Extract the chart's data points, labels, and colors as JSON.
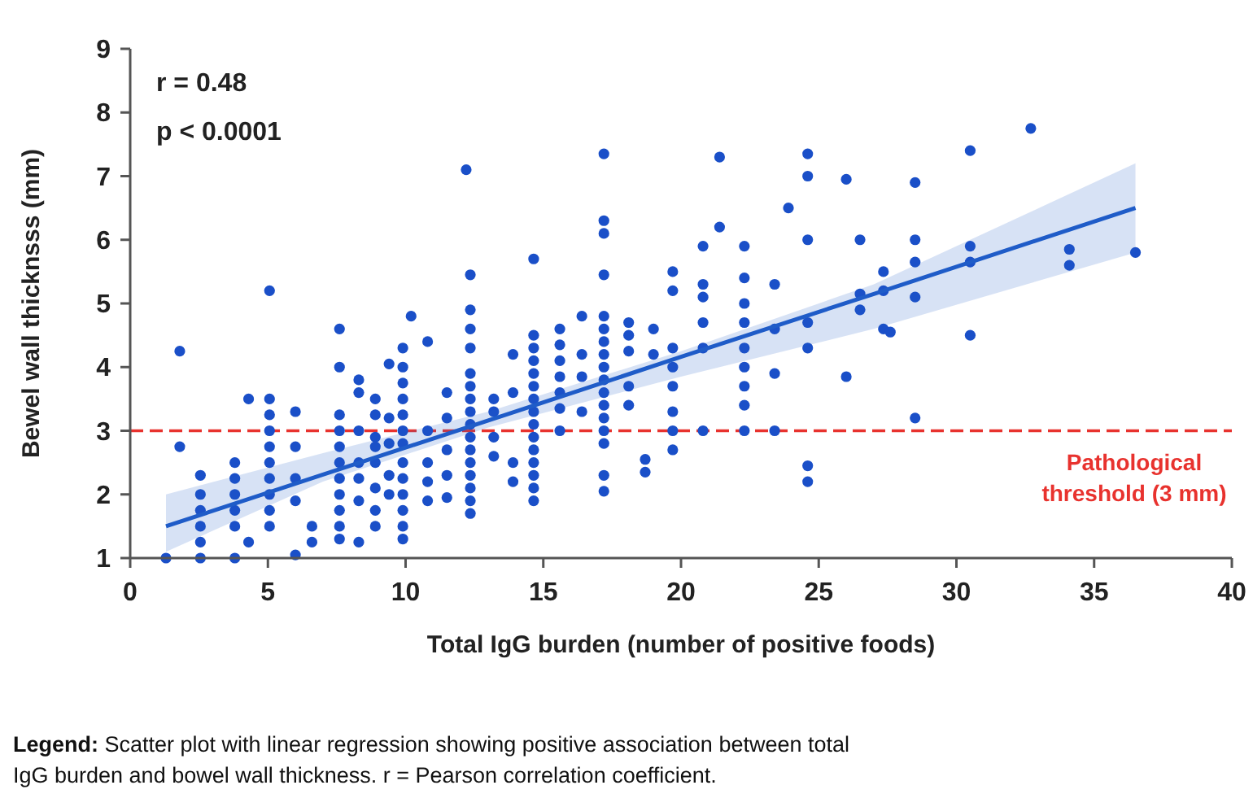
{
  "chart_data": {
    "type": "scatter",
    "xlabel": "Total IgG burden (number of positive foods)",
    "ylabel": "Bewel wall thicknsss (mm)",
    "xlim": [
      0,
      40
    ],
    "xticks": [
      0,
      5,
      10,
      15,
      20,
      25,
      30,
      35,
      40
    ],
    "ylim": [
      1,
      9
    ],
    "yticks": [
      1,
      2,
      3,
      4,
      5,
      6,
      7,
      8,
      9
    ],
    "grid": false,
    "annotations": [
      "r = 0.48",
      "p < 0.0001",
      "Legend: Scatter plot with linear regression showing positive association between total IgG burden and bowel wall thickness. r = Pearson correlation coefficient."
    ],
    "ref_lines": [
      {
        "axis": "y",
        "value": 3,
        "label": "Pathological threshold (3 mm)",
        "color": "#e8322e",
        "line_style": "dashed"
      }
    ],
    "series": [
      {
        "color": "#1a4fc8",
        "marker": "circle",
        "x": [
          1.3,
          1.8,
          1.8,
          2.55,
          2.55,
          2.55,
          2.55,
          2.55,
          2.55,
          3.8,
          3.8,
          3.8,
          3.8,
          3.8,
          3.8,
          4.3,
          4.3,
          5.06,
          5.06,
          5.06,
          5.06,
          5.06,
          5.06,
          5.06,
          5.06,
          5.06,
          5.06,
          6,
          6,
          6,
          6,
          6,
          6.6,
          6.6,
          7.6,
          7.6,
          7.6,
          7.6,
          7.6,
          7.6,
          7.6,
          7.6,
          7.6,
          7.6,
          7.6,
          8.3,
          8.3,
          8.3,
          8.3,
          8.3,
          8.3,
          8.3,
          8.9,
          8.9,
          8.9,
          8.9,
          8.9,
          8.9,
          8.9,
          8.9,
          9.4,
          9.4,
          9.4,
          9.4,
          9.4,
          9.9,
          9.9,
          9.9,
          9.9,
          9.9,
          9.9,
          9.9,
          9.9,
          9.9,
          9.9,
          9.9,
          9.9,
          9.9,
          10.2,
          10.8,
          10.8,
          10.8,
          10.8,
          10.8,
          11.5,
          11.5,
          11.5,
          11.5,
          11.5,
          12.2,
          12.35,
          12.35,
          12.35,
          12.35,
          12.35,
          12.35,
          12.35,
          12.35,
          12.35,
          12.35,
          12.35,
          12.35,
          12.35,
          12.35,
          12.35,
          12.35,
          13.2,
          13.2,
          13.2,
          13.2,
          13.9,
          13.9,
          13.9,
          13.9,
          14.65,
          14.65,
          14.65,
          14.65,
          14.65,
          14.65,
          14.65,
          14.65,
          14.65,
          14.65,
          14.65,
          14.65,
          14.65,
          14.65,
          14.65,
          15.6,
          15.6,
          15.6,
          15.6,
          15.6,
          15.6,
          15.6,
          16.4,
          16.4,
          16.4,
          16.4,
          17.2,
          17.2,
          17.2,
          17.2,
          17.2,
          17.2,
          17.2,
          17.2,
          17.2,
          17.2,
          17.2,
          17.2,
          17.2,
          17.2,
          17.2,
          17.2,
          17.2,
          18.1,
          18.1,
          18.1,
          18.1,
          18.1,
          18.7,
          18.7,
          19,
          19,
          19.7,
          19.7,
          19.7,
          19.7,
          19.7,
          19.7,
          19.7,
          19.7,
          20.8,
          20.8,
          20.8,
          20.8,
          20.8,
          20.8,
          21.4,
          21.4,
          22.3,
          22.3,
          22.3,
          22.3,
          22.3,
          22.3,
          22.3,
          22.3,
          22.3,
          23.4,
          23.4,
          23.4,
          23.4,
          23.9,
          24.6,
          24.6,
          24.6,
          24.6,
          24.6,
          24.6,
          24.6,
          26,
          26,
          26.5,
          26.5,
          26.5,
          27.35,
          27.35,
          27.35,
          27.6,
          28.5,
          28.5,
          28.5,
          28.5,
          28.5,
          30.5,
          30.5,
          30.5,
          30.5,
          32.7,
          34.1,
          34.1,
          36.5
        ],
        "values": [
          1.0,
          4.25,
          2.75,
          2.3,
          2.0,
          1.75,
          1.5,
          1.25,
          1.0,
          2.5,
          2.25,
          2.0,
          1.75,
          1.5,
          1.0,
          3.5,
          1.25,
          5.2,
          3.5,
          3.25,
          3.0,
          2.75,
          2.5,
          2.25,
          2.0,
          1.75,
          1.5,
          3.3,
          2.75,
          2.25,
          1.9,
          1.05,
          1.5,
          1.25,
          4.6,
          4.0,
          3.25,
          3.0,
          2.75,
          2.5,
          2.25,
          2.0,
          1.75,
          1.5,
          1.3,
          3.8,
          3.6,
          3.0,
          2.5,
          2.25,
          1.9,
          1.25,
          3.5,
          3.25,
          2.9,
          2.75,
          2.5,
          2.1,
          1.75,
          1.5,
          4.05,
          3.2,
          2.8,
          2.3,
          2.0,
          4.3,
          4.0,
          3.75,
          3.5,
          3.25,
          3.0,
          2.8,
          2.5,
          2.25,
          2.0,
          1.75,
          1.5,
          1.3,
          4.8,
          4.4,
          3.0,
          2.5,
          2.2,
          1.9,
          3.6,
          3.2,
          2.7,
          2.3,
          1.95,
          7.1,
          5.45,
          4.9,
          4.6,
          4.3,
          3.9,
          3.7,
          3.5,
          3.3,
          3.1,
          2.9,
          2.7,
          2.5,
          2.3,
          2.1,
          1.9,
          1.7,
          3.5,
          3.3,
          2.9,
          2.6,
          4.2,
          3.6,
          2.5,
          2.2,
          5.7,
          4.5,
          4.3,
          4.1,
          3.9,
          3.7,
          3.5,
          3.3,
          3.1,
          2.9,
          2.7,
          2.5,
          2.3,
          2.1,
          1.9,
          4.6,
          4.35,
          4.1,
          3.85,
          3.6,
          3.35,
          3.0,
          4.8,
          4.2,
          3.85,
          3.3,
          7.35,
          6.3,
          6.1,
          5.45,
          4.8,
          4.6,
          4.4,
          4.2,
          4.0,
          3.8,
          3.6,
          3.4,
          3.2,
          3.0,
          2.8,
          2.3,
          2.05,
          4.7,
          4.5,
          4.25,
          3.7,
          3.4,
          2.55,
          2.35,
          4.6,
          4.2,
          5.5,
          5.2,
          4.3,
          4.0,
          3.7,
          3.3,
          3.0,
          2.7,
          5.9,
          5.3,
          5.1,
          4.7,
          4.3,
          3.0,
          7.3,
          6.2,
          5.9,
          5.4,
          5.0,
          4.7,
          4.3,
          4.0,
          3.7,
          3.4,
          3.0,
          5.3,
          4.6,
          3.9,
          3.0,
          6.5,
          7.35,
          7.0,
          6.0,
          4.7,
          4.3,
          2.45,
          2.2,
          6.95,
          3.85,
          6.0,
          5.15,
          4.9,
          5.5,
          5.2,
          4.6,
          4.55,
          6.9,
          6.0,
          5.65,
          5.1,
          3.2,
          7.4,
          5.9,
          5.65,
          4.5,
          7.75,
          5.85,
          5.6,
          5.8
        ]
      },
      {
        "type": "line",
        "marker": "none",
        "color": "#1f5cc8",
        "x": [
          1.3,
          7,
          13,
          20,
          27,
          36.5
        ],
        "values": [
          1.5,
          2.31,
          3.16,
          4.16,
          5.15,
          6.5
        ],
        "lower": [
          1.1,
          2.2,
          3.05,
          3.85,
          4.6,
          5.8
        ],
        "upper": [
          2.0,
          2.65,
          3.3,
          4.25,
          5.3,
          7.2
        ]
      }
    ]
  }
}
